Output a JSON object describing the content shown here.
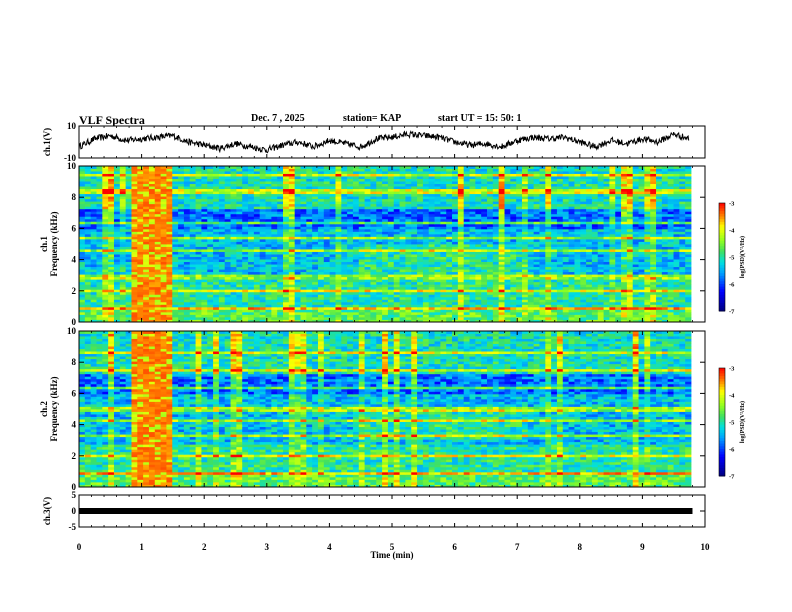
{
  "header": {
    "title": "VLF  Spectra",
    "date": "Dec. 7  , 2025",
    "station": "station= KAP",
    "start": "start  UT  =    15: 50: 1"
  },
  "chart_data": [
    {
      "type": "line",
      "name": "ch1-waveform",
      "ylabel": "ch.1(V)",
      "ylim": [
        -10,
        10
      ],
      "yticks": [
        "10",
        "-10"
      ],
      "x": [
        0,
        0.25,
        0.5,
        0.75,
        1.0,
        1.25,
        1.5,
        1.75,
        2.0,
        2.25,
        2.5,
        2.75,
        3.0,
        3.25,
        3.5,
        3.75,
        4.0,
        4.25,
        4.5,
        4.75,
        5.0,
        5.25,
        5.5,
        5.75,
        6.0,
        6.25,
        6.5,
        6.75,
        7.0,
        7.25,
        7.5,
        7.75,
        8.0,
        8.25,
        8.5,
        8.75,
        9.0,
        9.25,
        9.5,
        9.75
      ],
      "y": [
        -3,
        2,
        4,
        1,
        2,
        3,
        4,
        0,
        -2,
        -4,
        -1,
        -3,
        -5,
        -2,
        0,
        -3,
        1,
        -1,
        -3,
        2,
        3,
        5,
        4,
        3,
        0,
        -2,
        -1,
        -3,
        1,
        3,
        2,
        3,
        0,
        -3,
        1,
        -1,
        2,
        0,
        5,
        2
      ]
    },
    {
      "type": "heatmap",
      "name": "ch1-spectrogram",
      "ylabel": "ch.1\nFrequency  (kHz)",
      "ylim": [
        0,
        10
      ],
      "yticks": [
        "0",
        "2",
        "4",
        "6",
        "8",
        "10"
      ],
      "xlim": [
        0,
        10
      ],
      "colorbar": {
        "label": "log(PSD)(V²/Hz)",
        "range": [
          -7,
          -3
        ],
        "ticks": [
          "-3",
          "-4",
          "-5",
          "-6",
          "-7"
        ]
      }
    },
    {
      "type": "heatmap",
      "name": "ch2-spectrogram",
      "ylabel": "ch.2\nFrequency  (kHz)",
      "ylim": [
        0,
        10
      ],
      "yticks": [
        "0",
        "2",
        "4",
        "6",
        "8",
        "10"
      ],
      "xlim": [
        0,
        10
      ],
      "colorbar": {
        "label": "log(PSD)(V²/Hz)",
        "range": [
          -7,
          -3
        ],
        "ticks": [
          "-3",
          "-4",
          "-5",
          "-6",
          "-7"
        ]
      }
    },
    {
      "type": "line",
      "name": "ch3-waveform",
      "ylabel": "ch.3(V)",
      "ylim": [
        -5,
        5
      ],
      "yticks": [
        "5",
        "0",
        "-5"
      ],
      "x": [
        0,
        9.8
      ],
      "y": [
        0,
        0
      ]
    }
  ],
  "xaxis": {
    "label": "Time  (min)",
    "ticks": [
      "0",
      "1",
      "2",
      "3",
      "4",
      "5",
      "6",
      "7",
      "8",
      "9",
      "10"
    ],
    "xlim": [
      0,
      10
    ]
  }
}
